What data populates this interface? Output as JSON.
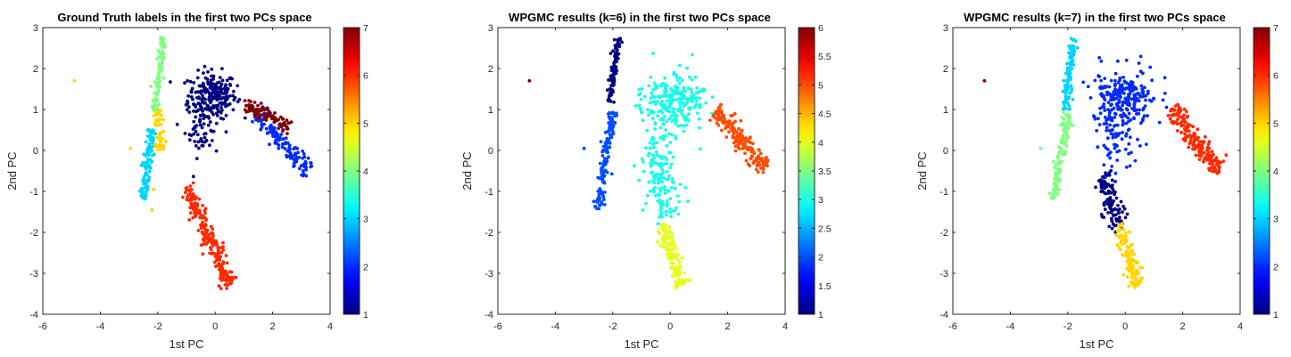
{
  "chart_data": [
    {
      "type": "scatter",
      "title": "Ground Truth labels in the first two PCs space",
      "xlabel": "1st PC",
      "ylabel": "2nd PC",
      "xlim": [
        -6,
        4
      ],
      "ylim": [
        -4,
        3
      ],
      "xticks": [
        "-6",
        "-4",
        "-2",
        "0",
        "2",
        "4"
      ],
      "yticks": [
        "-4",
        "-3",
        "-2",
        "-1",
        "0",
        "1",
        "2",
        "3"
      ],
      "colorbar": {
        "lim": [
          1,
          7
        ],
        "ticks": [
          "1",
          "2",
          "3",
          "4",
          "5",
          "6",
          "7"
        ]
      },
      "colormap": "jet",
      "clusters": [
        {
          "label": 1,
          "value": 1,
          "shape": "blob",
          "cx": -0.1,
          "cy": 1.35,
          "sx": 0.42,
          "sy": 0.28,
          "n": 220
        },
        {
          "label": 1,
          "value": 1,
          "shape": "blob",
          "cx": -0.45,
          "cy": 0.55,
          "sx": 0.3,
          "sy": 0.35,
          "n": 60
        },
        {
          "label": 2,
          "value": 2,
          "shape": "line",
          "from": [
            1.4,
            0.9
          ],
          "to": [
            3.3,
            -0.5
          ],
          "spread": 0.12,
          "n": 140
        },
        {
          "label": 3,
          "value": 3,
          "shape": "line",
          "from": [
            -2.2,
            0.5
          ],
          "to": [
            -2.5,
            -1.2
          ],
          "spread": 0.07,
          "n": 120
        },
        {
          "label": 4,
          "value": 4,
          "shape": "line",
          "from": [
            -1.8,
            2.75
          ],
          "to": [
            -2.1,
            0.95
          ],
          "spread": 0.06,
          "n": 110
        },
        {
          "label": 5,
          "value": 5,
          "shape": "line",
          "from": [
            -2.0,
            1.0
          ],
          "to": [
            -1.9,
            0.0
          ],
          "spread": 0.08,
          "n": 45
        },
        {
          "label": 6,
          "value": 6,
          "shape": "line",
          "from": [
            -1.0,
            -0.9
          ],
          "to": [
            0.55,
            -3.3
          ],
          "spread": 0.12,
          "n": 230
        },
        {
          "label": 7,
          "value": 7,
          "shape": "line",
          "from": [
            1.0,
            1.15
          ],
          "to": [
            2.6,
            0.55
          ],
          "spread": 0.09,
          "n": 90
        }
      ],
      "outliers": [
        {
          "x": -4.9,
          "y": 1.7,
          "value": 5
        },
        {
          "x": -2.95,
          "y": 0.05,
          "value": 5
        },
        {
          "x": -2.2,
          "y": -1.45,
          "value": 5
        },
        {
          "x": -2.15,
          "y": -0.95,
          "value": 5
        }
      ]
    },
    {
      "type": "scatter",
      "title": "WPGMC results (k=6) in the first two PCs space",
      "xlabel": "1st PC",
      "ylabel": "2nd PC",
      "xlim": [
        -6,
        4
      ],
      "ylim": [
        -4,
        3
      ],
      "xticks": [
        "-6",
        "-4",
        "-2",
        "0",
        "2",
        "4"
      ],
      "yticks": [
        "-4",
        "-3",
        "-2",
        "-1",
        "0",
        "1",
        "2",
        "3"
      ],
      "colorbar": {
        "lim": [
          1,
          6
        ],
        "ticks": [
          "1",
          "1.5",
          "2",
          "2.5",
          "3",
          "3.5",
          "4",
          "4.5",
          "5",
          "5.5",
          "6"
        ]
      },
      "colormap": "jet",
      "clusters": [
        {
          "label": 1,
          "value": 1,
          "shape": "line",
          "from": [
            -1.8,
            2.75
          ],
          "to": [
            -2.1,
            1.2
          ],
          "spread": 0.06,
          "n": 100
        },
        {
          "label": 2,
          "value": 2,
          "shape": "line",
          "from": [
            -2.0,
            0.95
          ],
          "to": [
            -2.5,
            -1.45
          ],
          "spread": 0.08,
          "n": 150
        },
        {
          "label": 3,
          "value": 3,
          "shape": "blob",
          "cx": 0.1,
          "cy": 1.2,
          "sx": 0.55,
          "sy": 0.35,
          "n": 240
        },
        {
          "label": 3,
          "value": 3,
          "shape": "line",
          "from": [
            -0.7,
            0.3
          ],
          "to": [
            -0.1,
            -1.7
          ],
          "spread": 0.28,
          "n": 150
        },
        {
          "label": 4,
          "value": 4,
          "shape": "line",
          "from": [
            -0.3,
            -1.8
          ],
          "to": [
            0.45,
            -3.3
          ],
          "spread": 0.12,
          "n": 140
        },
        {
          "label": 5,
          "value": 5,
          "shape": "line",
          "from": [
            1.6,
            1.0
          ],
          "to": [
            3.3,
            -0.5
          ],
          "spread": 0.13,
          "n": 180
        }
      ],
      "outliers": [
        {
          "x": -4.9,
          "y": 1.7,
          "value": 6
        },
        {
          "x": -3.0,
          "y": 0.05,
          "value": 2
        }
      ]
    },
    {
      "type": "scatter",
      "title": "WPGMC results (k=7) in the first two PCs space",
      "xlabel": "1st PC",
      "ylabel": "2nd PC",
      "xlim": [
        -6,
        4
      ],
      "ylim": [
        -4,
        3
      ],
      "xticks": [
        "-6",
        "-4",
        "-2",
        "0",
        "2",
        "4"
      ],
      "yticks": [
        "-4",
        "-3",
        "-2",
        "-1",
        "0",
        "1",
        "2",
        "3"
      ],
      "colorbar": {
        "lim": [
          1,
          7
        ],
        "ticks": [
          "1",
          "2",
          "3",
          "4",
          "5",
          "6",
          "7"
        ]
      },
      "colormap": "jet",
      "clusters": [
        {
          "label": 1,
          "value": 1,
          "shape": "line",
          "from": [
            -0.8,
            -0.6
          ],
          "to": [
            -0.2,
            -1.95
          ],
          "spread": 0.17,
          "n": 110
        },
        {
          "label": 2,
          "value": 2,
          "shape": "blob",
          "cx": 0.0,
          "cy": 1.3,
          "sx": 0.55,
          "sy": 0.35,
          "n": 230
        },
        {
          "label": 2,
          "value": 2,
          "shape": "blob",
          "cx": -0.3,
          "cy": 0.3,
          "sx": 0.45,
          "sy": 0.4,
          "n": 80
        },
        {
          "label": 3,
          "value": 3,
          "shape": "line",
          "from": [
            -1.8,
            2.75
          ],
          "to": [
            -2.1,
            1.0
          ],
          "spread": 0.06,
          "n": 110
        },
        {
          "label": 4,
          "value": 4,
          "shape": "line",
          "from": [
            -2.0,
            0.9
          ],
          "to": [
            -2.5,
            -1.2
          ],
          "spread": 0.08,
          "n": 120
        },
        {
          "label": 5,
          "value": 5,
          "shape": "line",
          "from": [
            -0.2,
            -1.8
          ],
          "to": [
            0.45,
            -3.3
          ],
          "spread": 0.12,
          "n": 130
        },
        {
          "label": 6,
          "value": 6,
          "shape": "line",
          "from": [
            1.6,
            1.0
          ],
          "to": [
            3.3,
            -0.5
          ],
          "spread": 0.13,
          "n": 180
        }
      ],
      "outliers": [
        {
          "x": -4.9,
          "y": 1.7,
          "value": 7
        },
        {
          "x": -2.95,
          "y": 0.05,
          "value": 4
        }
      ]
    }
  ]
}
